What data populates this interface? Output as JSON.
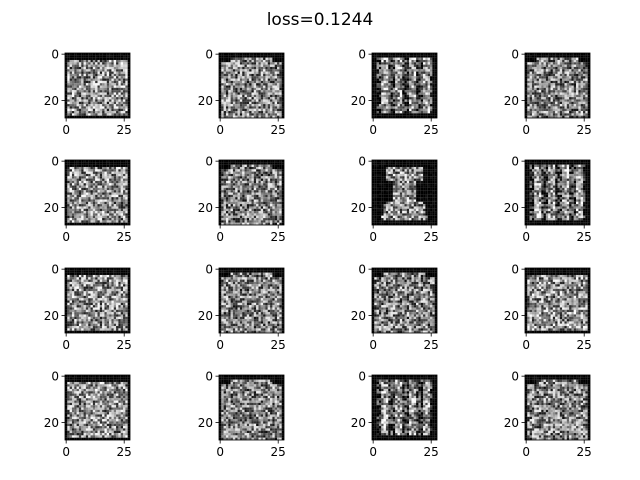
{
  "title": "loss=0.1244",
  "chart_data": {
    "type": "heatmap",
    "title": "loss=0.1244",
    "grid": {
      "rows": 4,
      "cols": 4
    },
    "colormap": "gray",
    "image_size": [
      28,
      28
    ],
    "axes": {
      "xlim": [
        -0.5,
        27.5
      ],
      "ylim": [
        27.5,
        -0.5
      ],
      "xticks": [
        0,
        25
      ],
      "yticks": [
        0,
        20
      ],
      "xtick_labels": [
        "0",
        "25"
      ],
      "ytick_labels": [
        "0",
        "20"
      ],
      "grid": false
    },
    "panels": [
      {
        "row": 0,
        "col": 0,
        "style": "blob"
      },
      {
        "row": 0,
        "col": 1,
        "style": "garment"
      },
      {
        "row": 0,
        "col": 2,
        "style": "columns"
      },
      {
        "row": 0,
        "col": 3,
        "style": "garment"
      },
      {
        "row": 1,
        "col": 0,
        "style": "blob"
      },
      {
        "row": 1,
        "col": 1,
        "style": "garment"
      },
      {
        "row": 1,
        "col": 2,
        "style": "dress"
      },
      {
        "row": 1,
        "col": 3,
        "style": "columns"
      },
      {
        "row": 2,
        "col": 0,
        "style": "blob"
      },
      {
        "row": 2,
        "col": 1,
        "style": "garment"
      },
      {
        "row": 2,
        "col": 2,
        "style": "garment"
      },
      {
        "row": 2,
        "col": 3,
        "style": "blob"
      },
      {
        "row": 3,
        "col": 0,
        "style": "blob"
      },
      {
        "row": 3,
        "col": 1,
        "style": "garment"
      },
      {
        "row": 3,
        "col": 2,
        "style": "columns"
      },
      {
        "row": 3,
        "col": 3,
        "style": "garment"
      }
    ]
  }
}
